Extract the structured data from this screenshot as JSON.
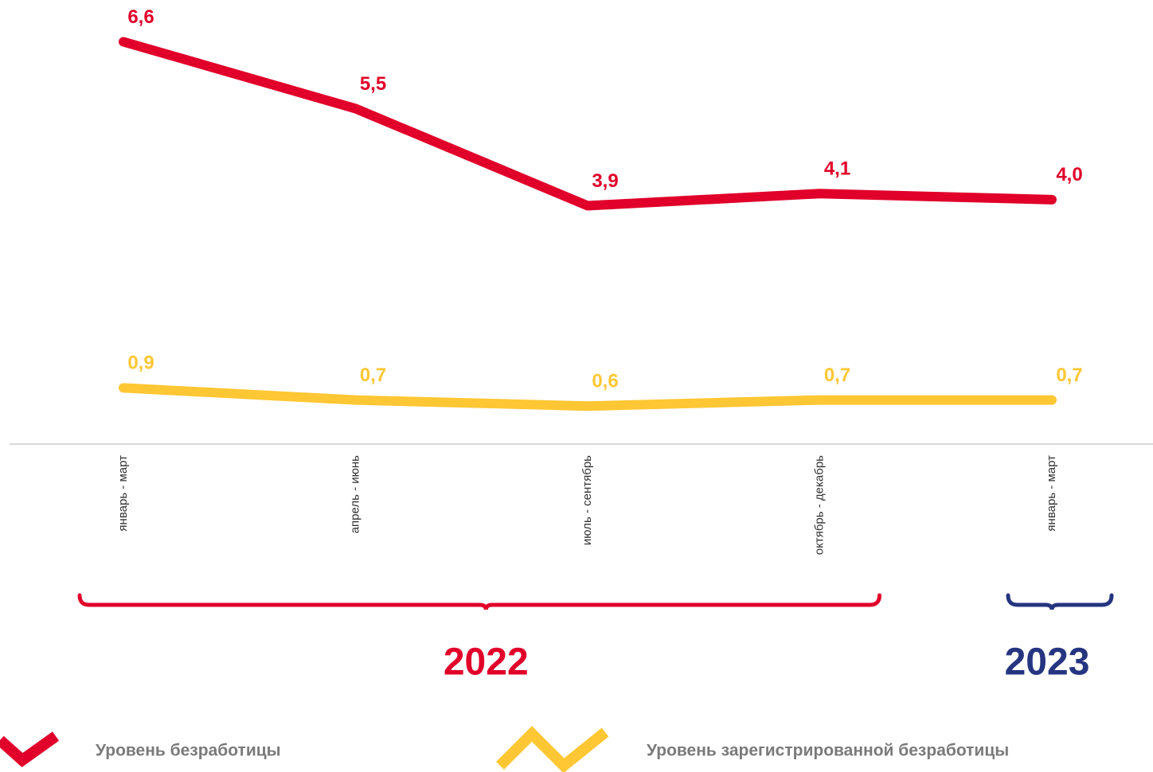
{
  "chart_data": {
    "type": "line",
    "categories": [
      "январь - март",
      "апрель - июнь",
      "июль - сентябрь",
      "октябрь - декабрь",
      "январь - март"
    ],
    "x_groups": [
      {
        "label": "2022",
        "count": 4,
        "color": "#e0002a"
      },
      {
        "label": "2023",
        "count": 1,
        "color": "#253580"
      }
    ],
    "series": [
      {
        "name": "Уровень безработицы",
        "color": "#e0002a",
        "values": [
          6.6,
          5.5,
          3.9,
          4.1,
          4.0
        ],
        "value_labels": [
          "6,6",
          "5,5",
          "3,9",
          "4,1",
          "4,0"
        ]
      },
      {
        "name": "Уровень зарегистрированной безработицы",
        "color": "#ffc734",
        "values": [
          0.9,
          0.7,
          0.6,
          0.7,
          0.7
        ],
        "value_labels": [
          "0,9",
          "0,7",
          "0,6",
          "0,7",
          "0,7"
        ]
      }
    ],
    "ylim": [
      0,
      7
    ]
  }
}
